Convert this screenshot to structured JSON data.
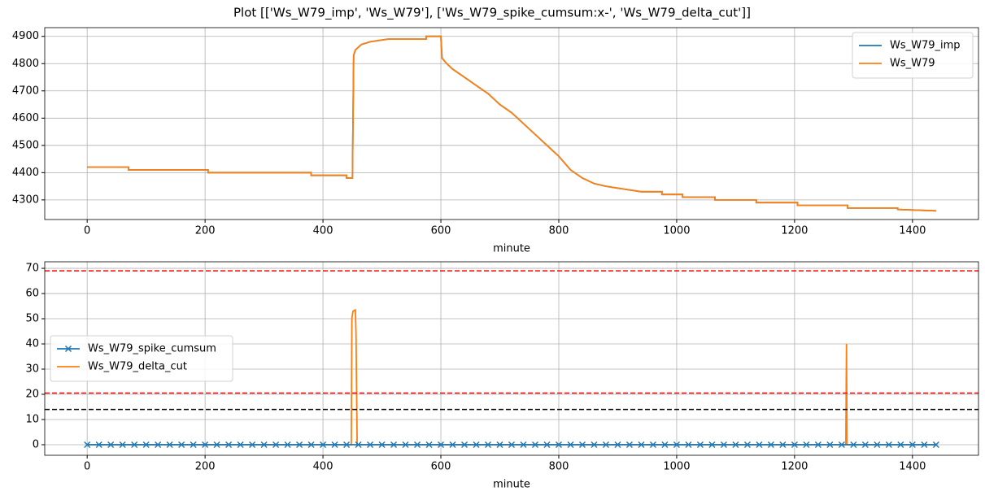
{
  "title": "Plot [['Ws_W79_imp', 'Ws_W79'], ['Ws_W79_spike_cumsum:x-', 'Ws_W79_delta_cut']]",
  "chart_data": [
    {
      "type": "line",
      "xlabel": "minute",
      "xlim": [
        -72,
        1512
      ],
      "ylim": [
        4228,
        4932
      ],
      "xticks": [
        0,
        200,
        400,
        600,
        800,
        1000,
        1200,
        1400
      ],
      "yticks": [
        4300,
        4400,
        4500,
        4600,
        4700,
        4800,
        4900
      ],
      "grid": true,
      "legend": "upper right",
      "series": [
        {
          "name": "Ws_W79_imp",
          "color": "#1f77b4",
          "marker": "none",
          "x": [
            0,
            70,
            70,
            205,
            205,
            380,
            380,
            440,
            440,
            450,
            452,
            455,
            460,
            465,
            480,
            510,
            575,
            575,
            600,
            602,
            610,
            620,
            640,
            660,
            680,
            700,
            720,
            740,
            760,
            780,
            800,
            820,
            840,
            860,
            880,
            910,
            940,
            975,
            975,
            1010,
            1010,
            1065,
            1065,
            1135,
            1135,
            1205,
            1205,
            1290,
            1290,
            1375,
            1375,
            1440
          ],
          "values": [
            4420,
            4420,
            4410,
            4410,
            4400,
            4400,
            4390,
            4390,
            4380,
            4380,
            4830,
            4850,
            4860,
            4870,
            4880,
            4890,
            4890,
            4900,
            4900,
            4820,
            4800,
            4780,
            4750,
            4720,
            4690,
            4650,
            4620,
            4580,
            4540,
            4500,
            4460,
            4410,
            4380,
            4360,
            4350,
            4340,
            4330,
            4330,
            4320,
            4320,
            4310,
            4310,
            4300,
            4300,
            4290,
            4290,
            4280,
            4280,
            4270,
            4270,
            4265,
            4260
          ]
        },
        {
          "name": "Ws_W79",
          "color": "#ff7f0e",
          "marker": "none",
          "x": [
            0,
            70,
            70,
            205,
            205,
            380,
            380,
            440,
            440,
            450,
            452,
            455,
            460,
            465,
            480,
            510,
            575,
            575,
            600,
            602,
            610,
            620,
            640,
            660,
            680,
            700,
            720,
            740,
            760,
            780,
            800,
            820,
            840,
            860,
            880,
            910,
            940,
            975,
            975,
            1010,
            1010,
            1065,
            1065,
            1135,
            1135,
            1205,
            1205,
            1290,
            1290,
            1375,
            1375,
            1440
          ],
          "values": [
            4420,
            4420,
            4410,
            4410,
            4400,
            4400,
            4390,
            4390,
            4380,
            4380,
            4830,
            4850,
            4860,
            4870,
            4880,
            4890,
            4890,
            4900,
            4900,
            4820,
            4800,
            4780,
            4750,
            4720,
            4690,
            4650,
            4620,
            4580,
            4540,
            4500,
            4460,
            4410,
            4380,
            4360,
            4350,
            4340,
            4330,
            4330,
            4320,
            4320,
            4310,
            4310,
            4300,
            4300,
            4290,
            4290,
            4280,
            4280,
            4270,
            4270,
            4265,
            4260
          ]
        }
      ]
    },
    {
      "type": "line",
      "xlabel": "minute",
      "xlim": [
        -72,
        1512
      ],
      "ylim": [
        -4.2,
        72.6
      ],
      "xticks": [
        0,
        200,
        400,
        600,
        800,
        1000,
        1200,
        1400
      ],
      "yticks": [
        0,
        10,
        20,
        30,
        40,
        50,
        60,
        70
      ],
      "grid": true,
      "legend": "center left",
      "hlines": [
        {
          "value": 69,
          "color": "#ff0000"
        },
        {
          "value": 20.5,
          "color": "#ff0000"
        },
        {
          "value": 14,
          "color": "#000000"
        }
      ],
      "series": [
        {
          "name": "Ws_W79_delta_cut",
          "color": "#ff7f0e",
          "marker": "none",
          "x": [
            0,
            448,
            449,
            451,
            455,
            456,
            458,
            1287,
            1288,
            1289,
            1440
          ],
          "values": [
            0,
            0,
            50,
            53,
            53.5,
            44,
            0,
            0,
            40,
            0,
            0
          ]
        },
        {
          "name": "Ws_W79_spike_cumsum",
          "color": "#1f77b4",
          "marker": "x",
          "x": [
            0,
            20,
            40,
            60,
            80,
            100,
            120,
            140,
            160,
            180,
            200,
            220,
            240,
            260,
            280,
            300,
            320,
            340,
            360,
            380,
            400,
            420,
            440,
            460,
            480,
            500,
            520,
            540,
            560,
            580,
            600,
            620,
            640,
            660,
            680,
            700,
            720,
            740,
            760,
            780,
            800,
            820,
            840,
            860,
            880,
            900,
            920,
            940,
            960,
            980,
            1000,
            1020,
            1040,
            1060,
            1080,
            1100,
            1120,
            1140,
            1160,
            1180,
            1200,
            1220,
            1240,
            1260,
            1280,
            1300,
            1320,
            1340,
            1360,
            1380,
            1400,
            1420,
            1440
          ],
          "values": [
            0,
            0,
            0,
            0,
            0,
            0,
            0,
            0,
            0,
            0,
            0,
            0,
            0,
            0,
            0,
            0,
            0,
            0,
            0,
            0,
            0,
            0,
            0,
            0,
            0,
            0,
            0,
            0,
            0,
            0,
            0,
            0,
            0,
            0,
            0,
            0,
            0,
            0,
            0,
            0,
            0,
            0,
            0,
            0,
            0,
            0,
            0,
            0,
            0,
            0,
            0,
            0,
            0,
            0,
            0,
            0,
            0,
            0,
            0,
            0,
            0,
            0,
            0,
            0,
            0,
            0,
            0,
            0,
            0,
            0,
            0,
            0,
            0
          ]
        }
      ]
    }
  ]
}
